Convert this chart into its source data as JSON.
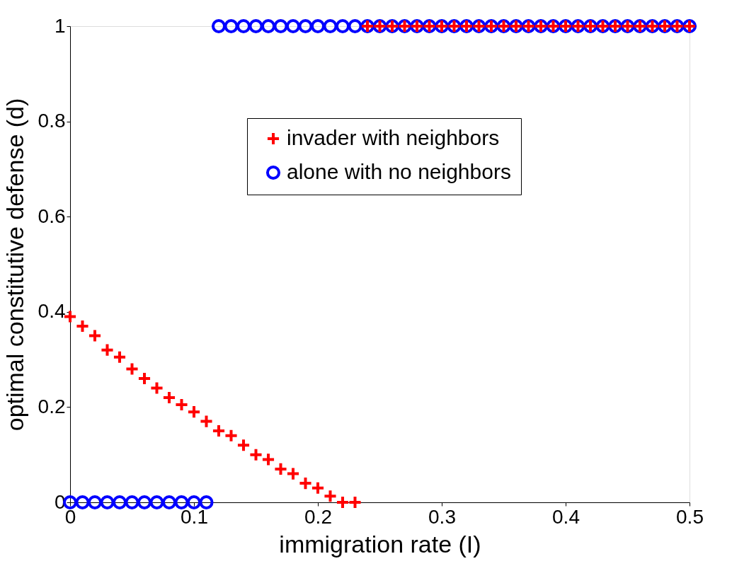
{
  "chart_data": {
    "type": "scatter",
    "xlabel": "immigration rate (I)",
    "ylabel": "optimal constitutive defense (d)",
    "xlim": [
      0,
      0.5
    ],
    "ylim": [
      0,
      1
    ],
    "xticks": [
      0,
      0.1,
      0.2,
      0.3,
      0.4,
      0.5
    ],
    "yticks": [
      0,
      0.2,
      0.4,
      0.6,
      0.8,
      1
    ],
    "grid": false,
    "legend": "top",
    "series": [
      {
        "name": "invader with neighbors",
        "color": "#ff0000",
        "marker": "cross",
        "x": [
          0,
          0.01,
          0.02,
          0.03,
          0.04,
          0.05,
          0.06,
          0.07,
          0.08,
          0.09,
          0.1,
          0.11,
          0.12,
          0.13,
          0.14,
          0.15,
          0.16,
          0.17,
          0.18,
          0.19,
          0.2,
          0.21,
          0.22,
          0.23,
          0.24,
          0.25,
          0.26,
          0.27,
          0.28,
          0.29,
          0.3,
          0.31,
          0.32,
          0.33,
          0.34,
          0.35,
          0.36,
          0.37,
          0.38,
          0.39,
          0.4,
          0.41,
          0.42,
          0.43,
          0.44,
          0.45,
          0.46,
          0.47,
          0.48,
          0.49,
          0.5
        ],
        "values": [
          0.39,
          0.37,
          0.35,
          0.32,
          0.305,
          0.28,
          0.26,
          0.24,
          0.22,
          0.205,
          0.19,
          0.17,
          0.15,
          0.14,
          0.12,
          0.1,
          0.09,
          0.07,
          0.06,
          0.04,
          0.03,
          0.013,
          0,
          0,
          1,
          1,
          1,
          1,
          1,
          1,
          1,
          1,
          1,
          1,
          1,
          1,
          1,
          1,
          1,
          1,
          1,
          1,
          1,
          1,
          1,
          1,
          1,
          1,
          1,
          1,
          1
        ]
      },
      {
        "name": "alone with no neighbors",
        "color": "#0000ff",
        "marker": "circle",
        "x": [
          0,
          0.01,
          0.02,
          0.03,
          0.04,
          0.05,
          0.06,
          0.07,
          0.08,
          0.09,
          0.1,
          0.11,
          0.12,
          0.13,
          0.14,
          0.15,
          0.16,
          0.17,
          0.18,
          0.19,
          0.2,
          0.21,
          0.22,
          0.23,
          0.24,
          0.25,
          0.26,
          0.27,
          0.28,
          0.29,
          0.3,
          0.31,
          0.32,
          0.33,
          0.34,
          0.35,
          0.36,
          0.37,
          0.38,
          0.39,
          0.4,
          0.41,
          0.42,
          0.43,
          0.44,
          0.45,
          0.46,
          0.47,
          0.48,
          0.49,
          0.5
        ],
        "values": [
          0,
          0,
          0,
          0,
          0,
          0,
          0,
          0,
          0,
          0,
          0,
          0,
          1,
          1,
          1,
          1,
          1,
          1,
          1,
          1,
          1,
          1,
          1,
          1,
          1,
          1,
          1,
          1,
          1,
          1,
          1,
          1,
          1,
          1,
          1,
          1,
          1,
          1,
          1,
          1,
          1,
          1,
          1,
          1,
          1,
          1,
          1,
          1,
          1,
          1,
          1
        ]
      }
    ]
  }
}
